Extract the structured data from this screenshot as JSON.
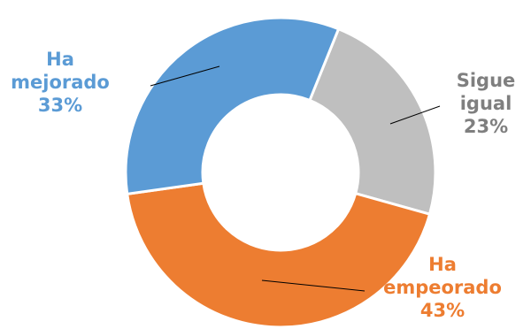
{
  "chart_data": {
    "type": "pie",
    "donut": true,
    "categories": [
      "Sigue igual",
      "Ha empeorado",
      "Ha mejorado"
    ],
    "values": [
      23,
      43,
      33
    ],
    "series": [
      {
        "name": "Sigue igual",
        "value": 23,
        "color": "#bfbfbf",
        "label_lines": [
          "Sigue",
          "igual",
          "23%"
        ]
      },
      {
        "name": "Ha empeorado",
        "value": 43,
        "color": "#ed7d31",
        "label_lines": [
          "Ha",
          "empeorado",
          "43%"
        ]
      },
      {
        "name": "Ha mejorado",
        "value": 33,
        "color": "#5b9bd5",
        "label_lines": [
          "Ha",
          "mejorado",
          "33%"
        ]
      }
    ],
    "label_colors": [
      "#7f7f7f",
      "#ed7d31",
      "#5b9bd5"
    ],
    "title": "",
    "legend": "none"
  }
}
